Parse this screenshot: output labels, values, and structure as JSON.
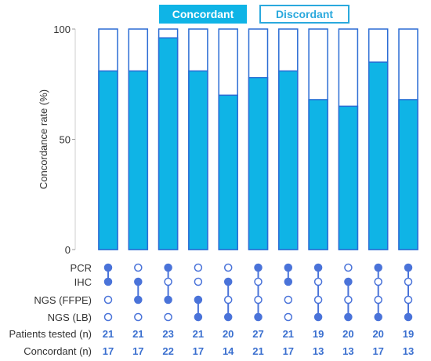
{
  "chart_data": {
    "type": "bar",
    "ylabel": "Concordance rate (%)",
    "ylim": [
      0,
      100
    ],
    "yticks": [
      0,
      50,
      100
    ],
    "legend": {
      "placement": "top",
      "entries": [
        "Concordant",
        "Discordant"
      ]
    },
    "methods": [
      "PCR",
      "IHC",
      "NGS (FFPE)",
      "NGS (LB)"
    ],
    "row_labels": {
      "patients": "Patients tested (n)",
      "concordant": "Concordant (n)"
    },
    "comparisons": [
      {
        "pair": [
          0,
          1
        ],
        "patients_tested": 21,
        "concordant": 17,
        "rate": 81
      },
      {
        "pair": [
          1,
          2
        ],
        "patients_tested": 21,
        "concordant": 17,
        "rate": 81
      },
      {
        "pair": [
          0,
          2
        ],
        "patients_tested": 23,
        "concordant": 22,
        "rate": 96
      },
      {
        "pair": [
          2,
          3
        ],
        "patients_tested": 21,
        "concordant": 17,
        "rate": 81
      },
      {
        "pair": [
          1,
          3
        ],
        "patients_tested": 20,
        "concordant": 14,
        "rate": 70
      },
      {
        "pair": [
          0,
          3
        ],
        "patients_tested": 27,
        "concordant": 21,
        "rate": 78
      },
      {
        "pair": [
          0,
          1
        ],
        "patients_tested": 21,
        "concordant": 17,
        "rate": 81
      },
      {
        "pair": [
          0,
          3
        ],
        "patients_tested": 19,
        "concordant": 13,
        "rate": 68
      },
      {
        "pair": [
          1,
          3
        ],
        "patients_tested": 20,
        "concordant": 13,
        "rate": 65
      },
      {
        "pair": [
          0,
          3
        ],
        "patients_tested": 20,
        "concordant": 17,
        "rate": 85
      },
      {
        "pair": [
          0,
          3
        ],
        "patients_tested": 19,
        "concordant": 13,
        "rate": 68
      }
    ],
    "colors": {
      "concordant": "#0fb4e6",
      "discordant_fill": "#ffffff",
      "bar_outline": "#2b6cd4",
      "dot": "#4a73d9",
      "text": "#333333",
      "count_text": "#3a6fcf"
    }
  }
}
